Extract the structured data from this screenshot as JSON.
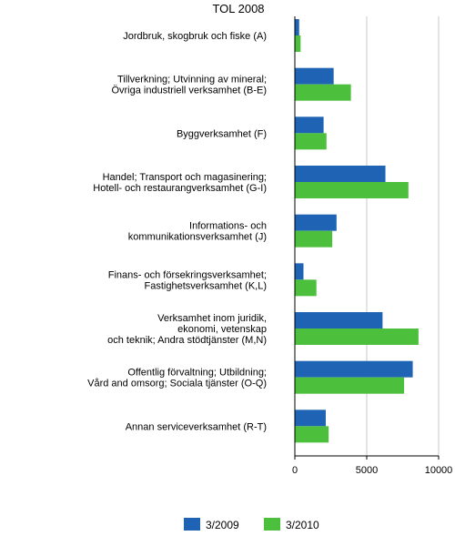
{
  "chart_data": {
    "type": "bar",
    "orientation": "horizontal",
    "title": "TOL 2008",
    "xlabel": "",
    "ylabel": "",
    "xlim": [
      0,
      10000
    ],
    "xticks": [
      "0",
      "5000",
      "10000"
    ],
    "grid": true,
    "legend_position": "bottom",
    "categories": [
      [
        "Jordbruk, skogbruk och fiske (A)"
      ],
      [
        "Tillverkning; Utvinning av mineral;",
        "Övriga industriell verksamhet (B-E)"
      ],
      [
        "Byggverksamhet (F)"
      ],
      [
        "Handel; Transport och magasinering;",
        "Hotell- och restaurangverksamhet (G-I)"
      ],
      [
        "Informations- och",
        "kommunikationsverksamhet (J)"
      ],
      [
        "Finans- och försekringsverksamhet;",
        "Fastighetsverksamhet (K,L)"
      ],
      [
        "Verksamhet inom juridik,",
        "ekonomi, vetenskap",
        "och teknik; Andra stödtjänster (M,N)"
      ],
      [
        "Offentlig förvaltning; Utbildning;",
        "Vård and omsorg; Sociala tjänster (O-Q)"
      ],
      [
        "Annan serviceverksamhet (R-T)"
      ]
    ],
    "series": [
      {
        "name": "3/2009",
        "color": "#1f64b4",
        "values": [
          300,
          2700,
          2000,
          6300,
          2900,
          600,
          6100,
          8200,
          2150
        ]
      },
      {
        "name": "3/2010",
        "color": "#4cbf3c",
        "values": [
          400,
          3900,
          2200,
          7900,
          2600,
          1500,
          8600,
          7600,
          2350
        ]
      }
    ]
  }
}
